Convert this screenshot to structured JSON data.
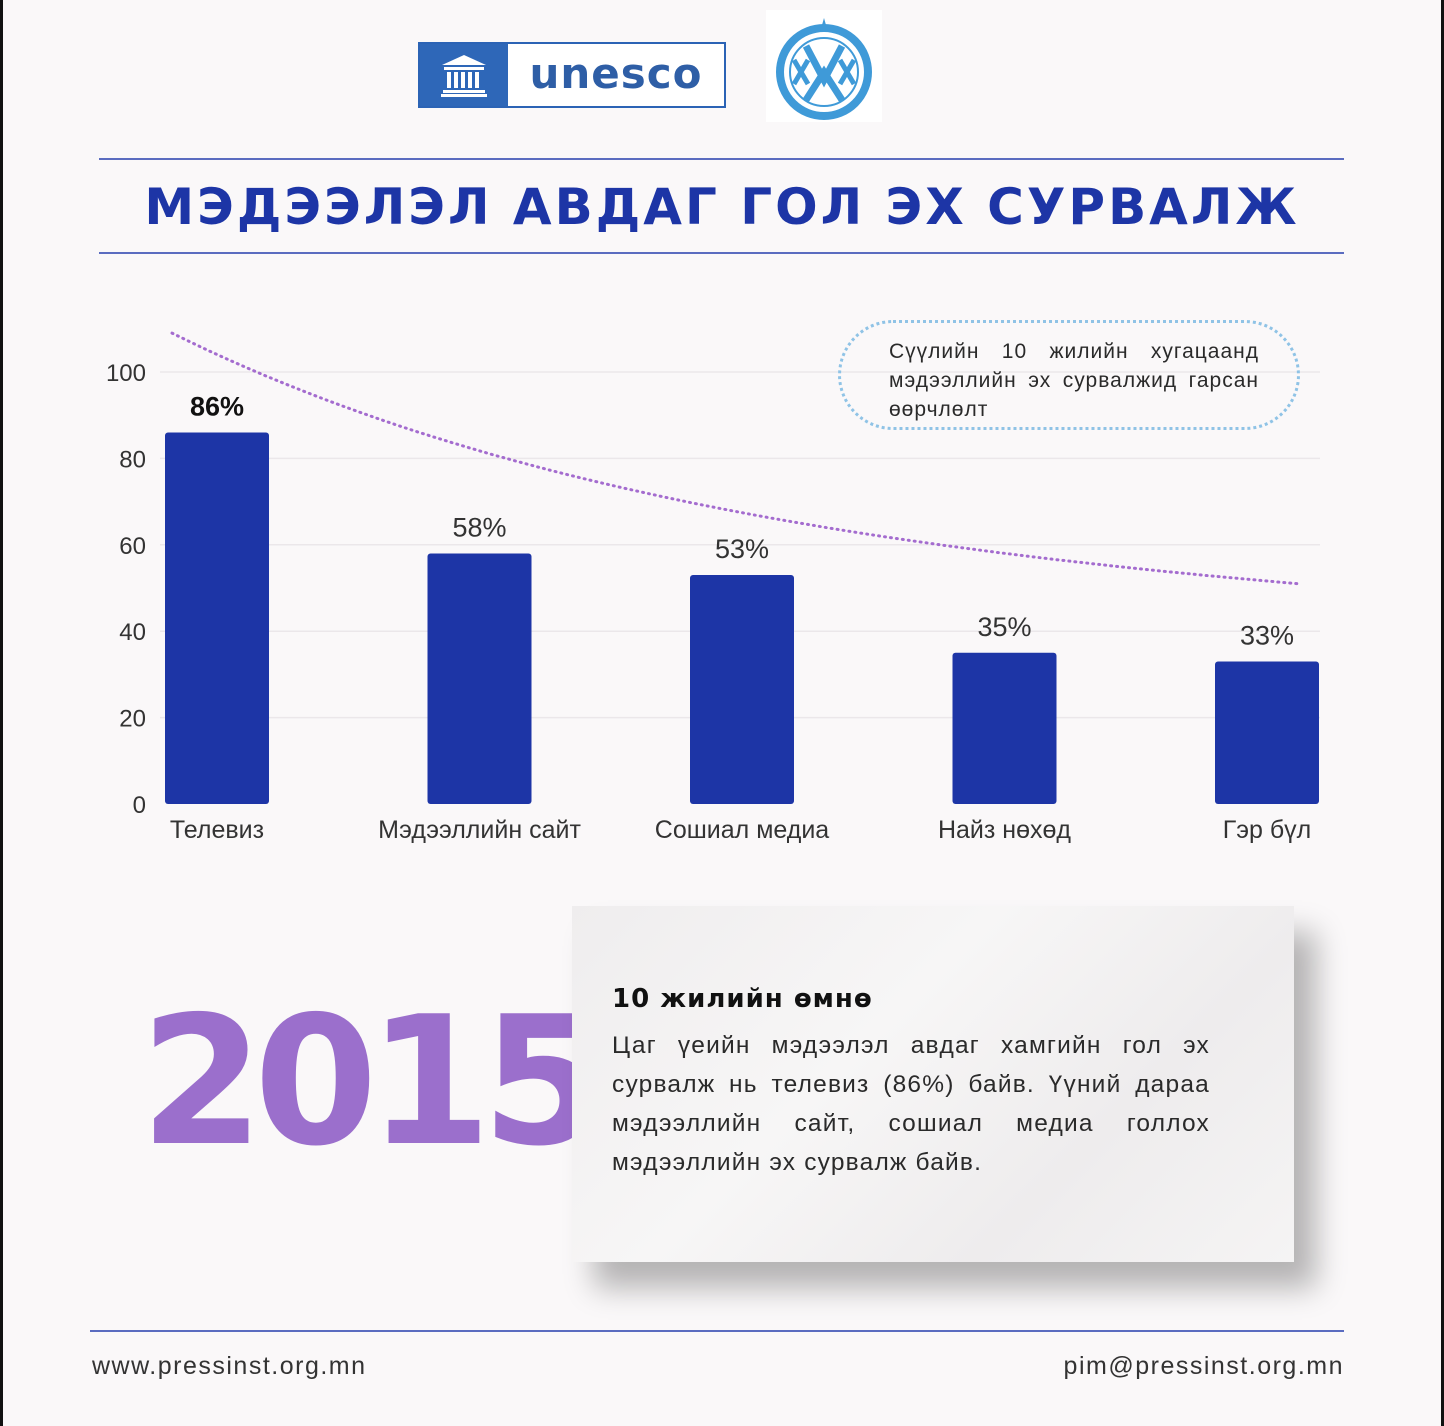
{
  "logos": {
    "unesco_text": "unesco",
    "unesco_color": "#2e67b8",
    "pim_logo_icon": "press-institute-emblem",
    "pim_logo_color": "#3f9ad8"
  },
  "title": "МЭДЭЭЛЭЛ АВДАГ ГОЛ ЭХ СУРВАЛЖ",
  "note": "Сүүлийн 10 жилийн хугацаанд мэдээллийн эх сурвалжид гарсан өөрчлөлт",
  "chart_data": {
    "type": "bar",
    "categories": [
      "Телевиз",
      "Мэдээллийн сайт",
      "Сошиал медиа",
      "Найз нөхөд",
      "Гэр бүл"
    ],
    "values": [
      86,
      58,
      53,
      35,
      33
    ],
    "value_labels": [
      "86%",
      "58%",
      "53%",
      "35%",
      "33%"
    ],
    "y_ticks": [
      0,
      20,
      40,
      60,
      80,
      100
    ],
    "ylim": [
      0,
      100
    ],
    "grid": true,
    "bar_color": "#1d35a6",
    "trend_color": "#a46ccf",
    "trend_style": "dotted"
  },
  "year": "2015",
  "panel": {
    "heading": "10 жилийн өмнө",
    "body": "Цаг үеийн мэдээлэл авдаг хамгийн гол эх сурвалж нь телевиз (86%) байв. Үүний дараа мэдээллийн сайт, сошиал медиа голлох мэдээллийн эх сурвалж байв."
  },
  "footer": {
    "website": "www.pressinst.org.mn",
    "email": "pim@pressinst.org.mn"
  }
}
